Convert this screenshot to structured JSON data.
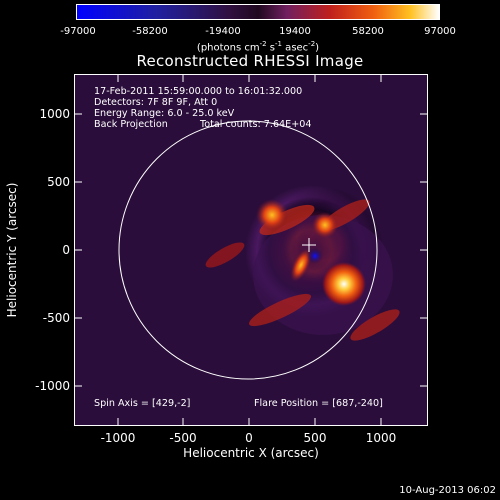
{
  "colorbar": {
    "ticks": [
      "-97000",
      "-58200",
      "-19400",
      "19400",
      "58200",
      "97000"
    ],
    "unit_base": "(photons cm",
    "unit_exp1": "-2",
    "unit_mid": " s",
    "unit_exp2": "-1",
    "unit_mid2": " asec",
    "unit_exp3": "-2",
    "unit_end": ")"
  },
  "title": "Reconstructed RHESSI Image",
  "info": {
    "line1": "17-Feb-2011 15:59:00.000 to 16:01:32.000",
    "line2": "Detectors: 7F 8F 9F, Att 0",
    "line3": "Energy Range: 6.0 - 25.0 keV",
    "line4a": "Back Projection",
    "line4b": "Total counts: 7.64E+04",
    "spin_axis": "Spin Axis = [429,-2]",
    "flare_position": "Flare Position = [687,-240]"
  },
  "axes": {
    "xlabel": "Heliocentric X (arcsec)",
    "ylabel": "Heliocentric Y (arcsec)",
    "xticks": [
      "-1000",
      "-500",
      "0",
      "500",
      "1000"
    ],
    "yticks": [
      "1000",
      "500",
      "0",
      "-500",
      "-1000"
    ]
  },
  "timestamp": "10-Aug-2013 06:02",
  "colors": {
    "background": "#000000",
    "foreground": "#ffffff",
    "colormap_low": "#0000ff",
    "colormap_high": "#ffffff"
  }
}
